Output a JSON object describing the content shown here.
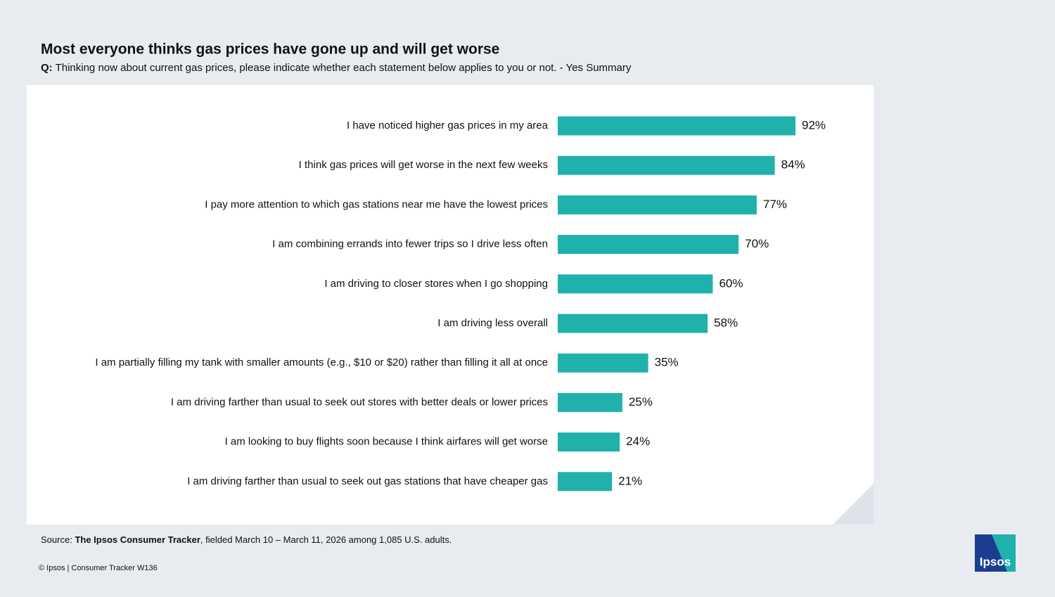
{
  "chart_data": {
    "type": "bar",
    "title": "Most everyone thinks gas prices have gone up and will get worse",
    "subtitle_label": "Q:",
    "subtitle": "Thinking now about current gas prices, please indicate whether each statement below applies to you or not. - Yes Summary",
    "categories": [
      "I have noticed higher gas prices in my area",
      "I think gas prices will get worse in the next few weeks",
      "I pay more attention to which gas stations near me have the lowest prices",
      "I am combining errands into fewer trips so I drive less often",
      "I am driving to closer stores when I go shopping",
      "I am driving less overall",
      "I am partially filling my tank with smaller amounts (e.g., $10 or $20) rather than filling it all at once",
      "I am driving farther than usual to seek out stores with better deals or lower prices",
      "I am looking to buy flights soon because I think airfares will get worse",
      "I am driving farther than usual to seek out gas stations that have cheaper gas"
    ],
    "values": [
      92,
      84,
      77,
      70,
      60,
      58,
      35,
      25,
      24,
      21
    ],
    "value_labels": [
      "92%",
      "84%",
      "77%",
      "70%",
      "60%",
      "58%",
      "35%",
      "25%",
      "24%",
      "21%"
    ],
    "color": "#20b1ad",
    "source": {
      "label": "Source:",
      "name": "The Ipsos Consumer Tracker",
      "text": ", fielded March 10 – March 11, 2026 among 1,085 U.S. adults."
    },
    "footer": "© Ipsos | Consumer Tracker W136",
    "logo": "Ipsos"
  }
}
